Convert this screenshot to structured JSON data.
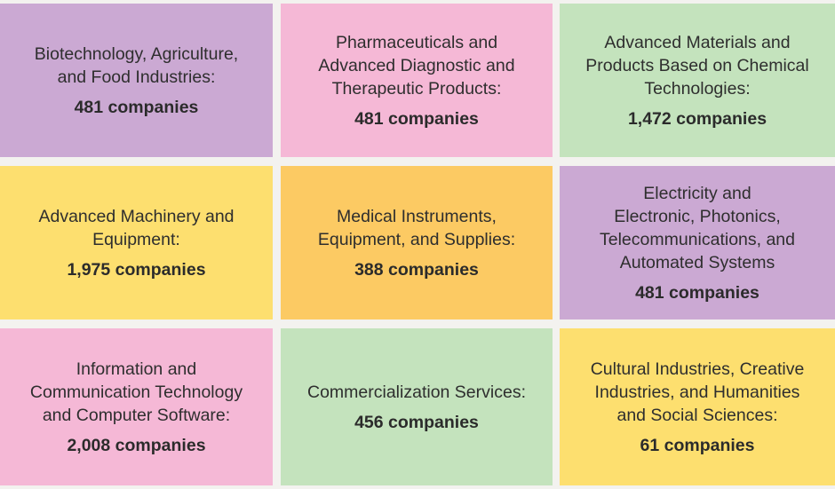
{
  "chart_data": {
    "type": "table",
    "colors": {
      "purple": "#cba9d3",
      "pink": "#f5b8d6",
      "green": "#c4e3bd",
      "yellow": "#fddf6f",
      "orange": "#fcca63"
    },
    "tiles": [
      {
        "label": "Biotechnology, Agriculture,\nand Food Industries:",
        "count": 481,
        "count_text": "481 companies",
        "color": "#cba9d3"
      },
      {
        "label": "Pharmaceuticals and\nAdvanced Diagnostic and\nTherapeutic Products:",
        "count": 481,
        "count_text": "481 companies",
        "color": "#f5b8d6"
      },
      {
        "label": "Advanced Materials and\nProducts Based on Chemical\nTechnologies:",
        "count": 1472,
        "count_text": "1,472 companies",
        "color": "#c4e3bd"
      },
      {
        "label": "Advanced Machinery and\nEquipment:",
        "count": 1975,
        "count_text": "1,975 companies",
        "color": "#fddf6f"
      },
      {
        "label": "Medical Instruments,\nEquipment, and Supplies:",
        "count": 388,
        "count_text": "388 companies",
        "color": "#fcca63"
      },
      {
        "label": "Electricity and\nElectronic, Photonics,\nTelecommunications, and\nAutomated Systems",
        "count": 481,
        "count_text": "481 companies",
        "color": "#cba9d3"
      },
      {
        "label": "Information and\nCommunication Technology\nand Computer Software:",
        "count": 2008,
        "count_text": "2,008 companies",
        "color": "#f5b8d6"
      },
      {
        "label": "Commercialization Services:",
        "count": 456,
        "count_text": "456 companies",
        "color": "#c4e3bd"
      },
      {
        "label": "Cultural Industries, Creative\nIndustries, and Humanities\nand Social Sciences:",
        "count": 61,
        "count_text": "61 companies",
        "color": "#fddf6f"
      }
    ]
  }
}
